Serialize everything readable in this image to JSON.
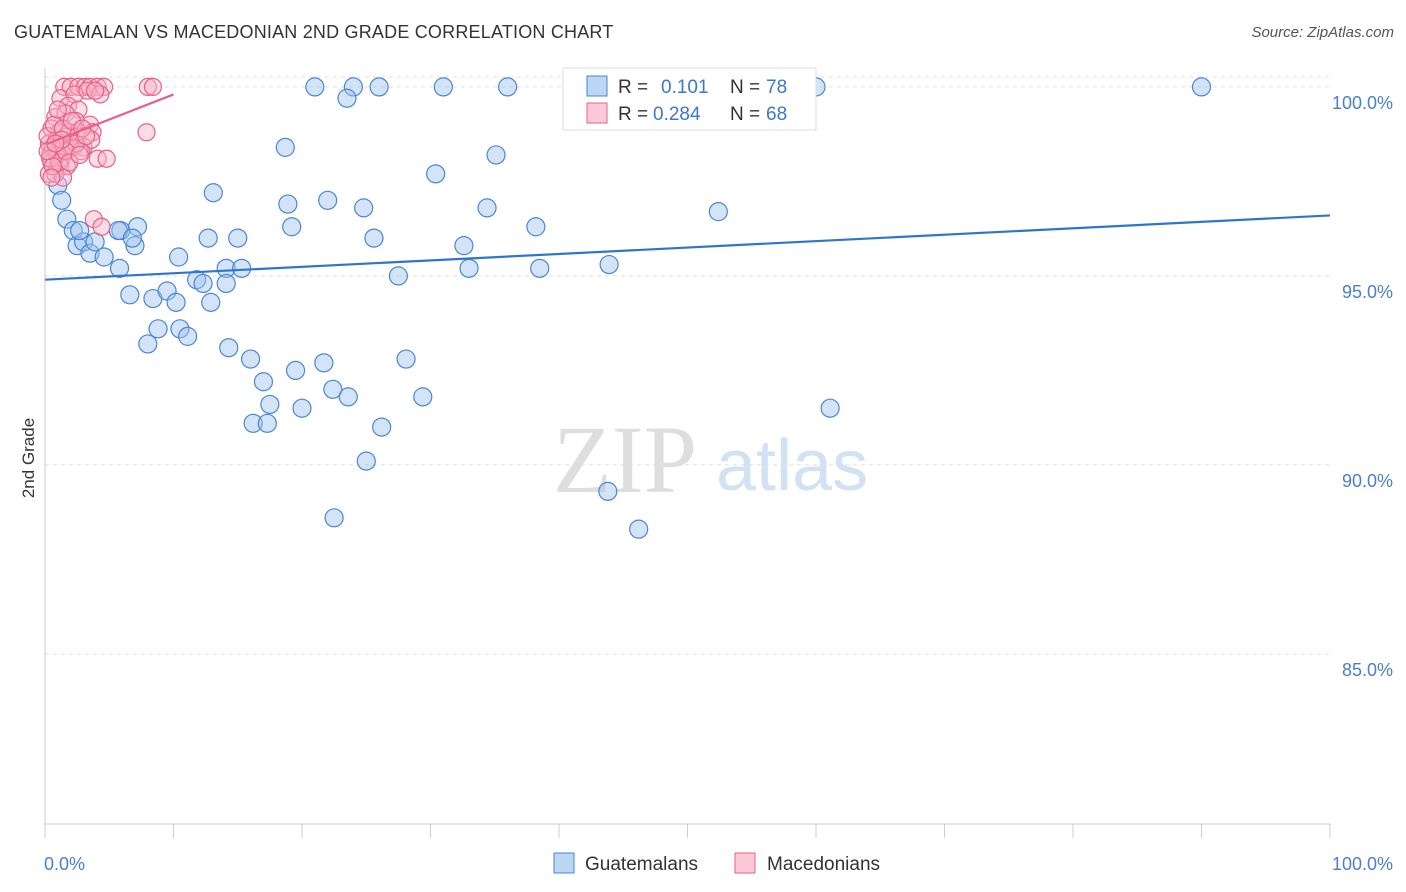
{
  "title": "GUATEMALAN VS MACEDONIAN 2ND GRADE CORRELATION CHART",
  "source": "Source: ZipAtlas.com",
  "watermark": {
    "part1": "ZIP",
    "part2": "atlas"
  },
  "colors": {
    "blue": "#4a86d4",
    "blue_fill": "rgba(160,196,240,0.45)",
    "pink": "#e8608a",
    "pink_fill": "rgba(248,180,200,0.45)",
    "grid": "#dddddd",
    "tick_text": "#4a7fc9"
  },
  "legend": {
    "rows": [
      {
        "r_label": "R =",
        "r_value": "0.101",
        "n_label": "N =",
        "n_value": "78",
        "series": "Guatemalans"
      },
      {
        "r_label": "R =",
        "r_value": "0.284",
        "n_label": "N =",
        "n_value": "68",
        "series": "Macedonians"
      }
    ]
  },
  "bottom_legend": [
    "Guatemalans",
    "Macedonians"
  ],
  "chart_data": {
    "type": "scatter",
    "title": "GUATEMALAN VS MACEDONIAN 2ND GRADE CORRELATION CHART",
    "xlabel": "",
    "ylabel": "2nd Grade",
    "xlim": [
      0,
      100
    ],
    "ylim": [
      80.5,
      100.5
    ],
    "x_tick_labels": [
      "0.0%",
      "100.0%"
    ],
    "y_ticks": [
      85,
      90,
      95,
      100
    ],
    "y_tick_labels": [
      "85.0%",
      "90.0%",
      "95.0%",
      "100.0%"
    ],
    "grid": true,
    "legend_position": "top-center",
    "series": [
      {
        "name": "Guatemalans",
        "color": "#4a86d4",
        "R": 0.101,
        "N": 78,
        "trend": {
          "x": [
            0,
            100
          ],
          "y": [
            94.9,
            96.6
          ]
        },
        "points": [
          [
            21,
            100
          ],
          [
            24,
            100
          ],
          [
            26,
            100
          ],
          [
            31,
            100
          ],
          [
            36,
            100
          ],
          [
            58,
            100
          ],
          [
            60,
            100
          ],
          [
            90,
            100
          ],
          [
            23.5,
            99.7
          ],
          [
            1.0,
            97.4
          ],
          [
            1.3,
            97.0
          ],
          [
            1.7,
            96.5
          ],
          [
            2.2,
            96.2
          ],
          [
            2.5,
            95.8
          ],
          [
            3.0,
            95.9
          ],
          [
            3.5,
            95.6
          ],
          [
            3.9,
            95.9
          ],
          [
            4.6,
            95.5
          ],
          [
            5.9,
            96.2
          ],
          [
            7.2,
            96.3
          ],
          [
            5.7,
            96.2
          ],
          [
            7.0,
            95.8
          ],
          [
            5.8,
            95.2
          ],
          [
            6.6,
            94.5
          ],
          [
            8.4,
            94.4
          ],
          [
            9.5,
            94.6
          ],
          [
            10.2,
            94.3
          ],
          [
            8.8,
            93.6
          ],
          [
            8.0,
            93.2
          ],
          [
            10.5,
            93.6
          ],
          [
            11.1,
            93.4
          ],
          [
            10.4,
            95.5
          ],
          [
            11.8,
            94.9
          ],
          [
            12.3,
            94.8
          ],
          [
            12.9,
            94.3
          ],
          [
            13.1,
            97.2
          ],
          [
            12.7,
            96.0
          ],
          [
            14.1,
            95.2
          ],
          [
            14.1,
            94.8
          ],
          [
            15.3,
            95.2
          ],
          [
            15.0,
            96.0
          ],
          [
            14.3,
            93.1
          ],
          [
            16.0,
            92.8
          ],
          [
            17.0,
            92.2
          ],
          [
            17.5,
            91.6
          ],
          [
            16.2,
            91.1
          ],
          [
            17.3,
            91.1
          ],
          [
            18.7,
            98.4
          ],
          [
            18.9,
            96.9
          ],
          [
            19.2,
            96.3
          ],
          [
            19.5,
            92.5
          ],
          [
            20.0,
            91.5
          ],
          [
            21.7,
            92.7
          ],
          [
            22.4,
            92.0
          ],
          [
            23.6,
            91.8
          ],
          [
            22.0,
            97.0
          ],
          [
            22.5,
            88.6
          ],
          [
            24.8,
            96.8
          ],
          [
            25.0,
            90.1
          ],
          [
            25.6,
            96.0
          ],
          [
            26.2,
            91.0
          ],
          [
            27.5,
            95.0
          ],
          [
            28.1,
            92.8
          ],
          [
            29.4,
            91.8
          ],
          [
            30.4,
            97.7
          ],
          [
            32.6,
            95.8
          ],
          [
            33.0,
            95.2
          ],
          [
            34.4,
            96.8
          ],
          [
            35.1,
            98.2
          ],
          [
            38.2,
            96.3
          ],
          [
            38.5,
            95.2
          ],
          [
            43.9,
            95.3
          ],
          [
            43.8,
            89.3
          ],
          [
            46.2,
            88.3
          ],
          [
            52.4,
            96.7
          ],
          [
            61.1,
            91.5
          ],
          [
            2.7,
            96.2
          ],
          [
            6.8,
            96.0
          ]
        ]
      },
      {
        "name": "Macedonians",
        "color": "#e8608a",
        "R": 0.284,
        "N": 68,
        "trend": {
          "x": [
            0.2,
            10
          ],
          "y": [
            98.5,
            99.8
          ]
        },
        "points": [
          [
            1.5,
            100
          ],
          [
            2.0,
            100
          ],
          [
            2.6,
            100
          ],
          [
            3.1,
            100
          ],
          [
            3.5,
            100
          ],
          [
            4.1,
            100
          ],
          [
            4.6,
            100
          ],
          [
            8.0,
            100
          ],
          [
            8.4,
            100
          ],
          [
            1.2,
            99.7
          ],
          [
            2.3,
            99.8
          ],
          [
            3.3,
            99.9
          ],
          [
            4.3,
            99.8
          ],
          [
            1.8,
            99.5
          ],
          [
            2.6,
            99.4
          ],
          [
            0.8,
            99.2
          ],
          [
            1.6,
            99.3
          ],
          [
            2.4,
            99.1
          ],
          [
            3.5,
            99.0
          ],
          [
            0.5,
            98.9
          ],
          [
            1.1,
            98.8
          ],
          [
            1.8,
            98.7
          ],
          [
            2.6,
            98.8
          ],
          [
            3.7,
            98.8
          ],
          [
            0.3,
            98.5
          ],
          [
            0.9,
            98.6
          ],
          [
            1.5,
            98.5
          ],
          [
            2.2,
            98.4
          ],
          [
            3.0,
            98.4
          ],
          [
            3.6,
            98.6
          ],
          [
            0.4,
            98.2
          ],
          [
            0.9,
            98.3
          ],
          [
            1.3,
            98.1
          ],
          [
            2.0,
            98.4
          ],
          [
            2.8,
            98.3
          ],
          [
            0.5,
            98.0
          ],
          [
            1.2,
            97.9
          ],
          [
            1.7,
            97.9
          ],
          [
            0.3,
            97.7
          ],
          [
            0.8,
            97.7
          ],
          [
            1.4,
            97.6
          ],
          [
            4.1,
            98.1
          ],
          [
            4.8,
            98.1
          ],
          [
            7.9,
            98.8
          ],
          [
            3.8,
            96.5
          ],
          [
            4.4,
            96.3
          ],
          [
            0.2,
            98.7
          ],
          [
            0.6,
            98.4
          ],
          [
            1.0,
            98.2
          ],
          [
            1.9,
            98.8
          ],
          [
            2.4,
            98.5
          ],
          [
            0.7,
            99.0
          ],
          [
            1.4,
            98.9
          ],
          [
            0.4,
            98.1
          ],
          [
            1.1,
            98.0
          ],
          [
            1.6,
            98.3
          ],
          [
            2.1,
            99.1
          ],
          [
            2.9,
            98.9
          ],
          [
            0.6,
            97.9
          ],
          [
            1.3,
            98.6
          ],
          [
            0.2,
            98.3
          ],
          [
            0.8,
            98.5
          ],
          [
            1.9,
            98.0
          ],
          [
            3.2,
            98.7
          ],
          [
            0.5,
            97.6
          ],
          [
            2.7,
            98.2
          ],
          [
            1.0,
            99.4
          ],
          [
            3.9,
            99.9
          ]
        ]
      }
    ]
  }
}
